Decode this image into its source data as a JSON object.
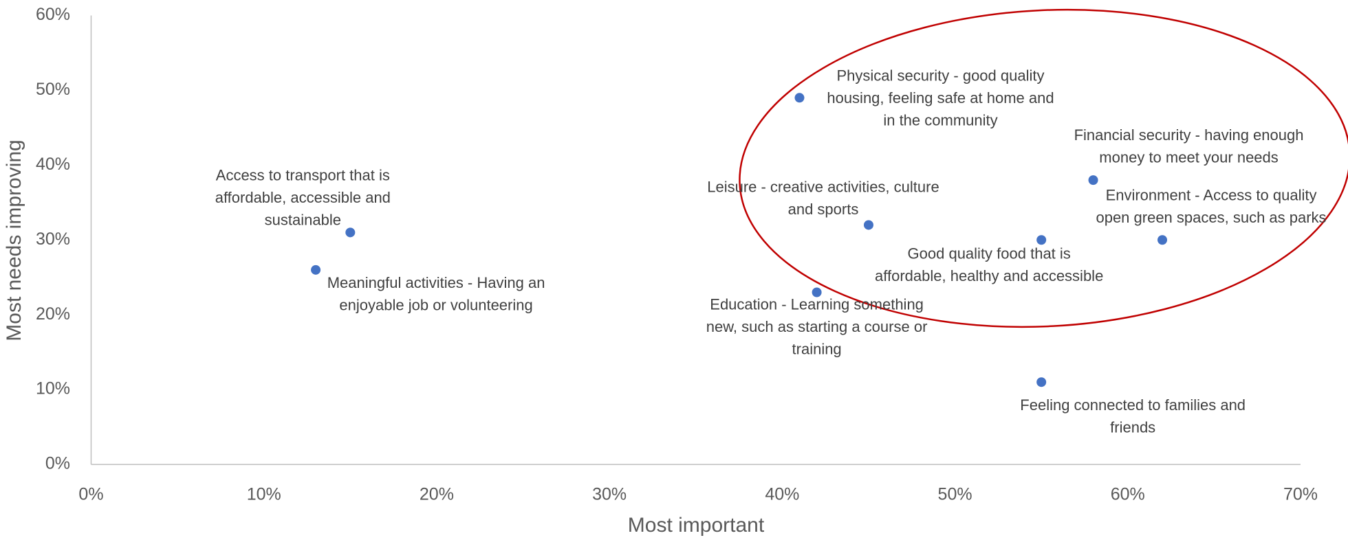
{
  "chart_data": {
    "type": "scatter",
    "x_label": "Most important",
    "y_label": "Most needs improving",
    "color": "#4472c4",
    "x": [
      15,
      13,
      41,
      45,
      42,
      55,
      58,
      62,
      55
    ],
    "values": [
      31,
      26,
      49,
      32,
      23,
      30,
      38,
      30,
      11
    ],
    "point_labels": [
      [
        "Access to transport that is",
        "affordable, accessible and",
        "sustainable"
      ],
      [
        "Meaningful activities - Having an",
        "enjoyable job or volunteering"
      ],
      [
        "Physical security - good quality",
        "housing, feeling safe at home and",
        "in the community"
      ],
      [
        "Leisure - creative activities, culture",
        "and sports"
      ],
      [
        "Education - Learning something",
        "new, such as starting a course or",
        "training"
      ],
      [
        "Good quality food that is",
        "affordable, healthy and accessible"
      ],
      [
        "Financial security - having enough",
        "money to meet your needs"
      ],
      [
        "Environment - Access to quality",
        "open green spaces, such as parks"
      ],
      [
        "Feeling connected to families and",
        "friends"
      ]
    ],
    "xlim": [
      0,
      70
    ],
    "xticks": [
      {
        "value": 0,
        "label": "0%"
      },
      {
        "value": 10,
        "label": "10%"
      },
      {
        "value": 20,
        "label": "20%"
      },
      {
        "value": 30,
        "label": "30%"
      },
      {
        "value": 40,
        "label": "40%"
      },
      {
        "value": 50,
        "label": "50%"
      },
      {
        "value": 60,
        "label": "60%"
      },
      {
        "value": 70,
        "label": "70%"
      }
    ],
    "ylim": [
      0,
      60
    ],
    "yticks": [
      {
        "value": 0,
        "label": "0%"
      },
      {
        "value": 10,
        "label": "10%"
      },
      {
        "value": 20,
        "label": "20%"
      },
      {
        "value": 30,
        "label": "30%"
      },
      {
        "value": 40,
        "label": "40%"
      },
      {
        "value": 50,
        "label": "50%"
      },
      {
        "value": 60,
        "label": "60%"
      }
    ],
    "grid": false
  }
}
